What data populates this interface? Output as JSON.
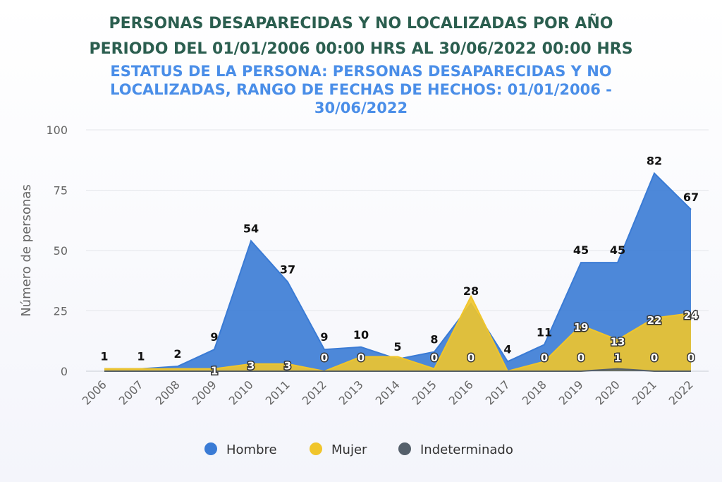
{
  "title_line1": "PERSONAS DESAPARECIDAS Y NO LOCALIZADAS POR AÑO",
  "title_line2": "PERIODO DEL 01/01/2006 00:00 HRS AL 30/06/2022 00:00 HRS",
  "subtitle_line1": "ESTATUS DE LA PERSONA: PERSONAS DESAPARECIDAS Y NO",
  "subtitle_line2": "LOCALIZADAS, RANGO DE FECHAS DE HECHOS: 01/01/2006 -",
  "subtitle_line3": "30/06/2022",
  "colors": {
    "title": "#2b5e4f",
    "subtitle": "#4a8ee8",
    "hombre": "#3a7bd5",
    "mujer": "#f0c52b",
    "indeterminado": "#55606b"
  },
  "chart_data": {
    "type": "area",
    "title": "PERSONAS DESAPARECIDAS Y NO LOCALIZADAS POR AÑO",
    "ylabel": "Número de personas",
    "xlabel": "",
    "ylim": [
      0,
      100
    ],
    "yticks": [
      0,
      25,
      50,
      75,
      100
    ],
    "categories": [
      "2006",
      "2007",
      "2008",
      "2009",
      "2010",
      "2011",
      "2012",
      "2013",
      "2014",
      "2015",
      "2016",
      "2017",
      "2018",
      "2019",
      "2020",
      "2021",
      "2022"
    ],
    "series": [
      {
        "name": "Hombre",
        "values": [
          1,
          1,
          2,
          9,
          54,
          37,
          9,
          10,
          5,
          8,
          28,
          4,
          11,
          45,
          45,
          82,
          67
        ]
      },
      {
        "name": "Mujer",
        "values": [
          1,
          1,
          1,
          1,
          3,
          3,
          0,
          6,
          6,
          1,
          31,
          0,
          4,
          19,
          13,
          22,
          24
        ]
      },
      {
        "name": "Indeterminado",
        "values": [
          0,
          0,
          0,
          0,
          0,
          0,
          0,
          0,
          0,
          0,
          0,
          0,
          0,
          0,
          1,
          0,
          0
        ]
      }
    ],
    "labels_shown": {
      "Hombre": [
        1,
        1,
        2,
        9,
        54,
        37,
        9,
        10,
        5,
        8,
        28,
        4,
        11,
        45,
        45,
        82,
        67
      ],
      "Mujer": [
        null,
        null,
        null,
        1,
        3,
        3,
        null,
        null,
        null,
        null,
        null,
        null,
        null,
        19,
        13,
        22,
        24
      ],
      "Indeterminado": [
        null,
        null,
        null,
        null,
        null,
        null,
        0,
        0,
        null,
        0,
        0,
        null,
        0,
        0,
        1,
        0,
        0
      ]
    },
    "legend_position": "bottom",
    "grid": true
  }
}
